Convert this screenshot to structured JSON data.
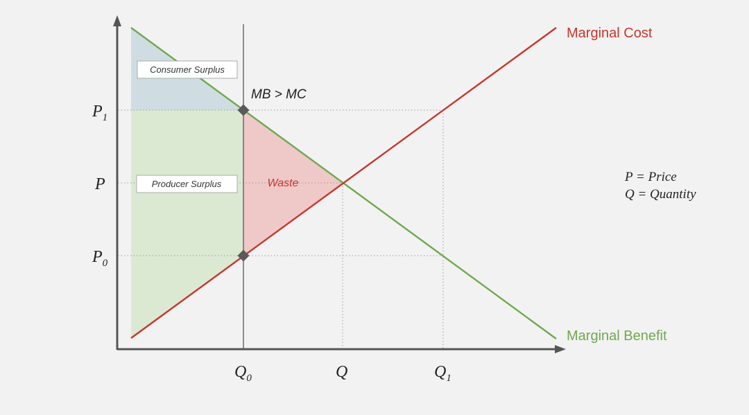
{
  "colors": {
    "background": "#f2f2f2",
    "axis": "#555555",
    "marginal_cost": "#c8352b",
    "marginal_benefit": "#6fa84f",
    "consumer_surplus_fill": "#cfdde2",
    "producer_surplus_fill": "#dbe9d2",
    "waste_fill": "#efc8c8",
    "dotted": "#9a9a9a",
    "marker": "#5a5a5a",
    "label_box_border": "#aaaaaa"
  },
  "curves": {
    "marginal_cost_label": "Marginal Cost",
    "marginal_benefit_label": "Marginal Benefit"
  },
  "labels": {
    "consumer_surplus": "Consumer Surplus",
    "producer_surplus": "Producer Surplus",
    "waste": "Waste",
    "mb_gt_mc": "MB > MC"
  },
  "y_ticks": {
    "p1": {
      "base": "P",
      "sub": "1"
    },
    "p": {
      "base": "P",
      "sub": ""
    },
    "p0": {
      "base": "P",
      "sub": "0"
    }
  },
  "x_ticks": {
    "q0": {
      "base": "Q",
      "sub": "0"
    },
    "q": {
      "base": "Q",
      "sub": ""
    },
    "q1": {
      "base": "Q",
      "sub": "1"
    }
  },
  "legend": {
    "line1": "P = Price",
    "line2": "Q = Quantity"
  }
}
